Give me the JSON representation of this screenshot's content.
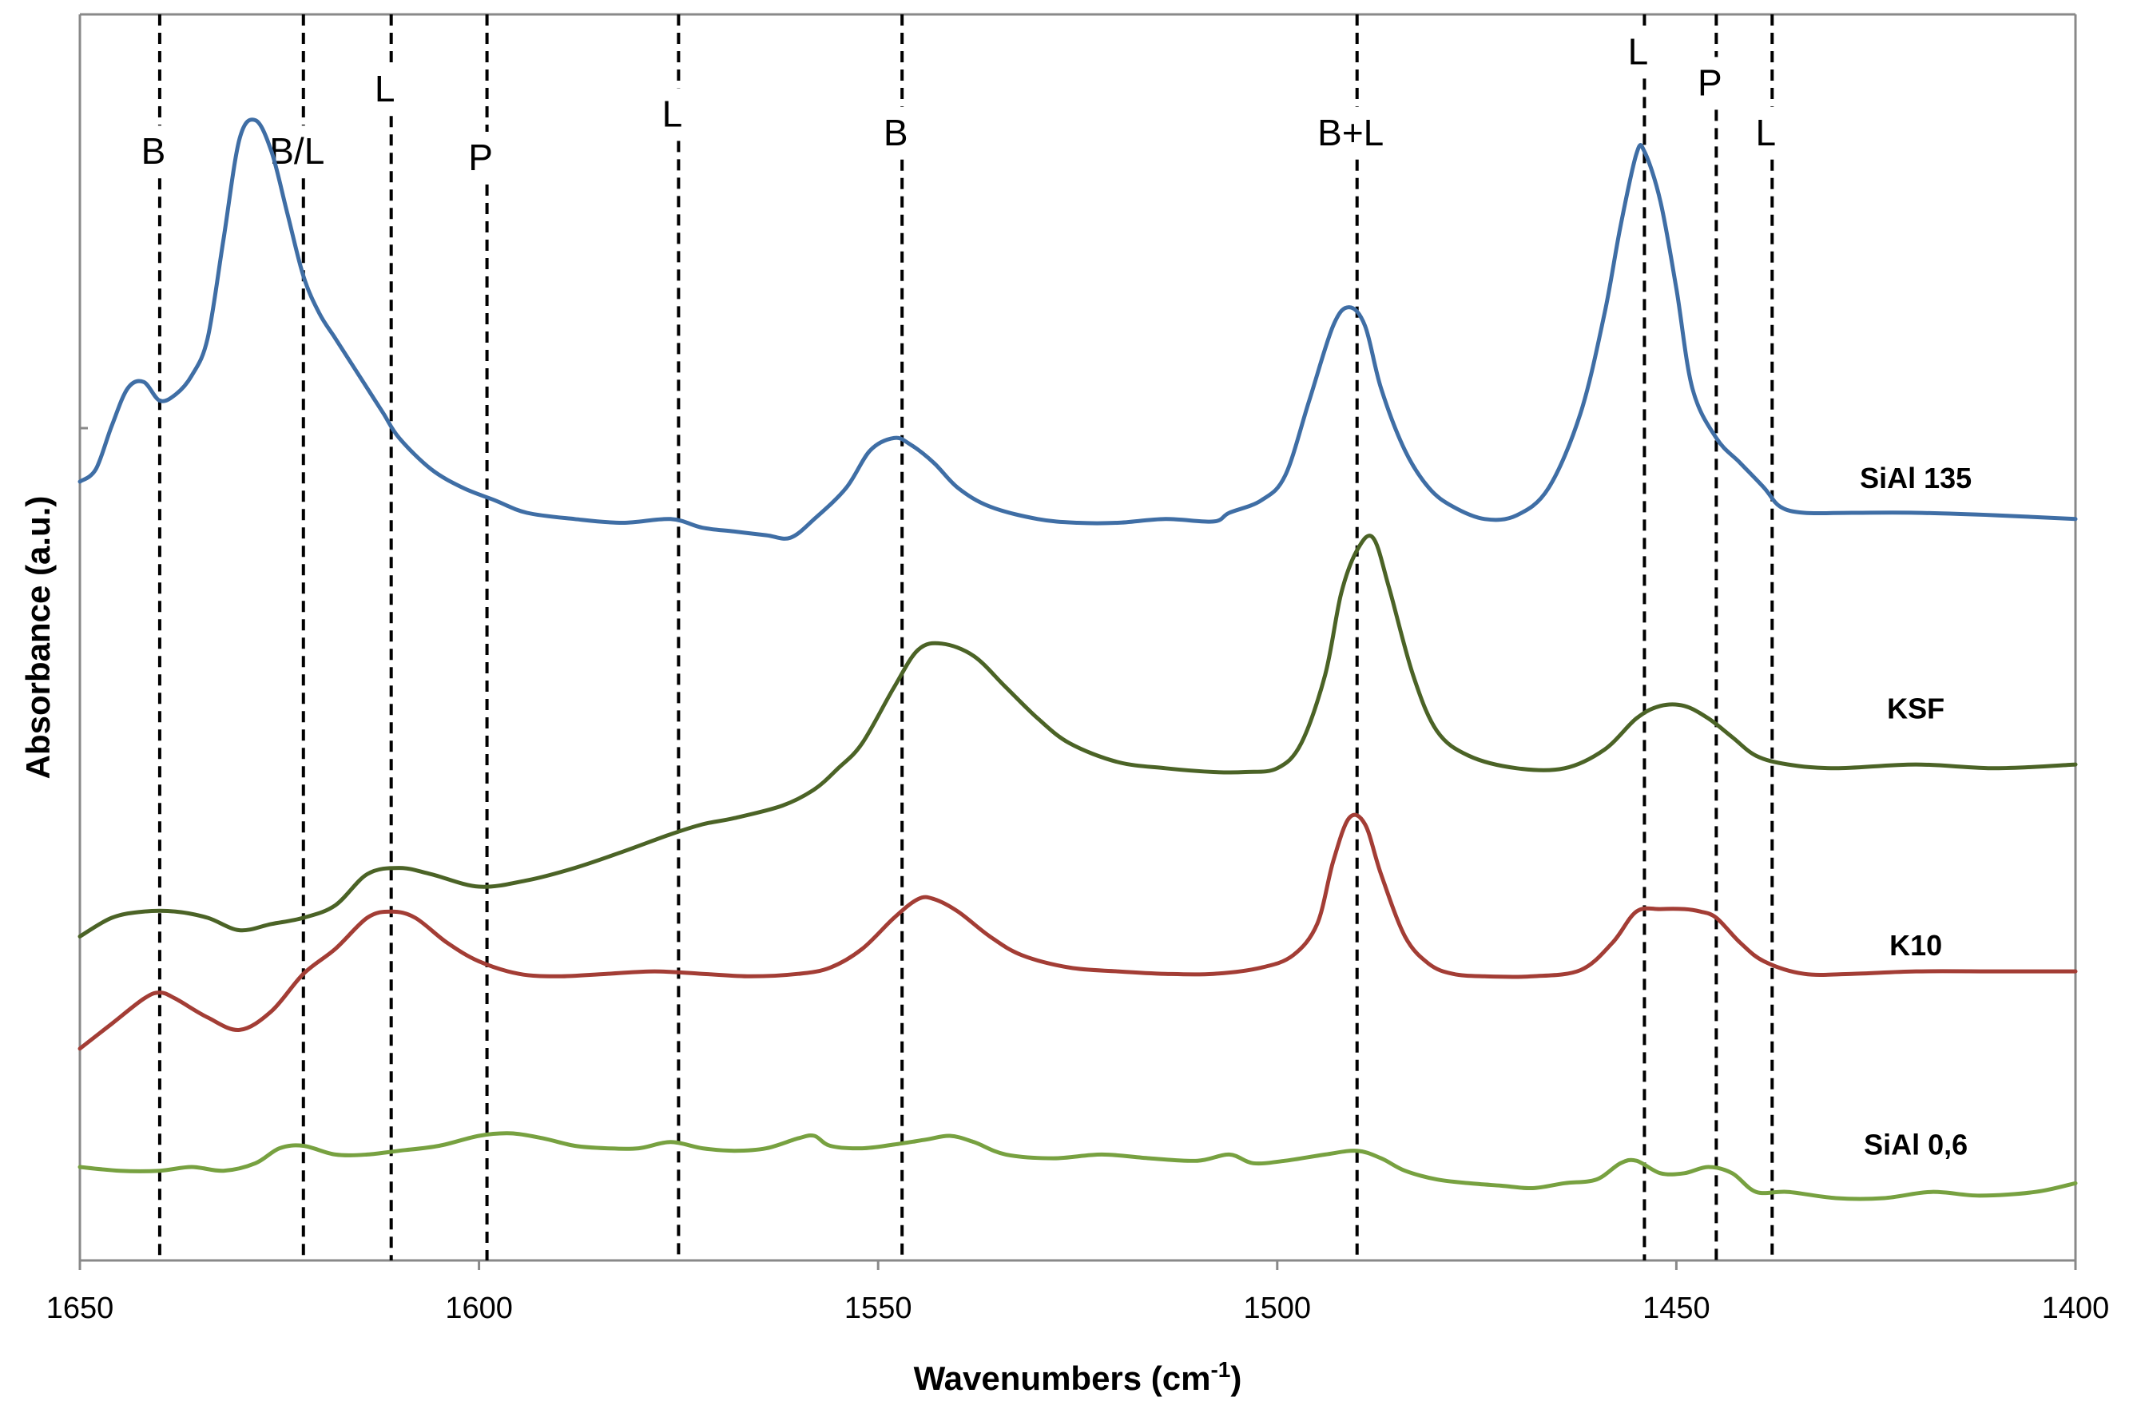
{
  "chart_data": {
    "type": "line",
    "title": "",
    "xlabel": "Wavenumbers (cm",
    "xlabel_sup": "-1",
    "xlabel_suffix": ")",
    "ylabel": "Absorbance (a.u.)",
    "xlim": [
      1650,
      1400
    ],
    "ylim": [
      0,
      10
    ],
    "x_ticks": [
      1650,
      1600,
      1550,
      1500,
      1450,
      1400
    ],
    "grid": false,
    "colors": {
      "axis": "#898989",
      "reference_line": "#000000"
    },
    "reference_lines": [
      {
        "x": 1640,
        "label": "B",
        "label_y": 8.8
      },
      {
        "x": 1622,
        "label": "B/L",
        "label_y": 8.8
      },
      {
        "x": 1611,
        "label": "L",
        "label_y": 9.3
      },
      {
        "x": 1599,
        "label": "P",
        "label_y": 8.75
      },
      {
        "x": 1575,
        "label": "L",
        "label_y": 9.1
      },
      {
        "x": 1547,
        "label": "B",
        "label_y": 8.95
      },
      {
        "x": 1490,
        "label": "B+L",
        "label_y": 8.95
      },
      {
        "x": 1454,
        "label": "L",
        "label_y": 9.6
      },
      {
        "x": 1445,
        "label": "P",
        "label_y": 9.35
      },
      {
        "x": 1438,
        "label": "L",
        "label_y": 8.95
      }
    ],
    "series": [
      {
        "name": "SiAl 135",
        "color": "#3f6ea5",
        "label_x": 1420,
        "label_y": 6.2,
        "x": [
          1650,
          1648,
          1646,
          1644,
          1642,
          1640,
          1638,
          1636,
          1634,
          1632,
          1630,
          1628,
          1626,
          1624,
          1622,
          1620,
          1618,
          1616,
          1614,
          1612,
          1610,
          1606,
          1602,
          1598,
          1594,
          1588,
          1582,
          1576,
          1572,
          1568,
          1564,
          1561,
          1558,
          1554,
          1551,
          1548,
          1546,
          1543,
          1540,
          1536,
          1530,
          1525,
          1520,
          1514,
          1508,
          1506,
          1502,
          1499,
          1496,
          1493,
          1491,
          1489,
          1487,
          1484,
          1481,
          1478,
          1474,
          1470,
          1466,
          1462,
          1459,
          1457,
          1455,
          1454,
          1452,
          1450,
          1448,
          1445,
          1442,
          1439,
          1437,
          1434,
          1428,
          1420,
          1410,
          1400
        ],
        "values": [
          6.25,
          6.35,
          6.7,
          7.0,
          7.05,
          6.9,
          6.95,
          7.1,
          7.4,
          8.2,
          9.0,
          9.15,
          8.9,
          8.4,
          7.9,
          7.6,
          7.4,
          7.2,
          7.0,
          6.8,
          6.6,
          6.35,
          6.2,
          6.1,
          6.0,
          5.95,
          5.92,
          5.95,
          5.88,
          5.85,
          5.82,
          5.8,
          5.95,
          6.2,
          6.5,
          6.6,
          6.55,
          6.4,
          6.2,
          6.05,
          5.95,
          5.92,
          5.92,
          5.95,
          5.93,
          6.0,
          6.1,
          6.3,
          6.9,
          7.5,
          7.65,
          7.5,
          7.0,
          6.5,
          6.2,
          6.05,
          5.95,
          5.98,
          6.2,
          6.8,
          7.6,
          8.3,
          8.88,
          8.9,
          8.5,
          7.8,
          7.0,
          6.6,
          6.4,
          6.2,
          6.05,
          6.0,
          6.0,
          6.0,
          5.98,
          5.95
        ]
      },
      {
        "name": "KSF",
        "color": "#4b6326",
        "label_x": 1420,
        "label_y": 4.35,
        "x": [
          1650,
          1646,
          1642,
          1638,
          1634,
          1630,
          1626,
          1622,
          1618,
          1614,
          1610,
          1606,
          1600,
          1594,
          1588,
          1582,
          1576,
          1572,
          1568,
          1562,
          1558,
          1555,
          1552,
          1548,
          1545,
          1542,
          1538,
          1534,
          1530,
          1526,
          1520,
          1514,
          1508,
          1504,
          1500,
          1497,
          1494,
          1492,
          1490,
          1488,
          1486,
          1483,
          1480,
          1476,
          1470,
          1464,
          1459,
          1455,
          1452,
          1449,
          1446,
          1443,
          1440,
          1436,
          1430,
          1420,
          1410,
          1400
        ],
        "values": [
          2.6,
          2.75,
          2.8,
          2.8,
          2.75,
          2.65,
          2.7,
          2.75,
          2.85,
          3.1,
          3.15,
          3.1,
          3.0,
          3.05,
          3.15,
          3.28,
          3.42,
          3.5,
          3.55,
          3.65,
          3.78,
          3.95,
          4.15,
          4.6,
          4.9,
          4.95,
          4.85,
          4.6,
          4.35,
          4.15,
          4.0,
          3.95,
          3.92,
          3.92,
          3.95,
          4.15,
          4.7,
          5.35,
          5.7,
          5.8,
          5.4,
          4.7,
          4.25,
          4.05,
          3.95,
          3.95,
          4.1,
          4.35,
          4.45,
          4.45,
          4.35,
          4.2,
          4.05,
          3.98,
          3.95,
          3.98,
          3.95,
          3.98
        ]
      },
      {
        "name": "K10",
        "color": "#a33d35",
        "label_x": 1420,
        "label_y": 2.45,
        "x": [
          1650,
          1646,
          1642,
          1640,
          1638,
          1634,
          1630,
          1626,
          1622,
          1618,
          1614,
          1611,
          1608,
          1604,
          1600,
          1595,
          1590,
          1584,
          1578,
          1572,
          1566,
          1560,
          1556,
          1552,
          1548,
          1545,
          1543,
          1540,
          1536,
          1532,
          1526,
          1520,
          1514,
          1508,
          1502,
          1498,
          1495,
          1493,
          1491,
          1489,
          1487,
          1484,
          1481,
          1478,
          1474,
          1468,
          1462,
          1458,
          1455,
          1452,
          1449,
          1447,
          1445,
          1442,
          1439,
          1434,
          1428,
          1420,
          1410,
          1400
        ],
        "values": [
          1.7,
          1.9,
          2.1,
          2.15,
          2.1,
          1.95,
          1.85,
          2.0,
          2.3,
          2.5,
          2.75,
          2.8,
          2.75,
          2.55,
          2.4,
          2.3,
          2.28,
          2.3,
          2.32,
          2.3,
          2.28,
          2.3,
          2.35,
          2.5,
          2.75,
          2.9,
          2.9,
          2.8,
          2.6,
          2.45,
          2.35,
          2.32,
          2.3,
          2.3,
          2.35,
          2.45,
          2.7,
          3.2,
          3.55,
          3.5,
          3.1,
          2.6,
          2.38,
          2.3,
          2.28,
          2.28,
          2.33,
          2.55,
          2.8,
          2.82,
          2.82,
          2.8,
          2.75,
          2.55,
          2.4,
          2.3,
          2.3,
          2.32,
          2.32,
          2.32
        ]
      },
      {
        "name": "SiAl 0,6",
        "color": "#77a140",
        "label_x": 1420,
        "label_y": 0.85,
        "x": [
          1650,
          1645,
          1640,
          1636,
          1632,
          1628,
          1625,
          1622,
          1618,
          1614,
          1610,
          1605,
          1600,
          1596,
          1592,
          1588,
          1584,
          1580,
          1576,
          1572,
          1568,
          1564,
          1560,
          1558,
          1556,
          1552,
          1548,
          1544,
          1541,
          1538,
          1534,
          1528,
          1522,
          1516,
          1510,
          1506,
          1503,
          1499,
          1494,
          1490,
          1487,
          1484,
          1480,
          1476,
          1472,
          1468,
          1464,
          1460,
          1457,
          1455,
          1452,
          1449,
          1446,
          1443,
          1440,
          1436,
          1430,
          1424,
          1418,
          1412,
          1405,
          1400
        ],
        "values": [
          0.75,
          0.72,
          0.72,
          0.75,
          0.72,
          0.78,
          0.9,
          0.92,
          0.85,
          0.85,
          0.88,
          0.92,
          1.0,
          1.02,
          0.98,
          0.92,
          0.9,
          0.9,
          0.95,
          0.9,
          0.88,
          0.9,
          0.98,
          1.0,
          0.92,
          0.9,
          0.93,
          0.97,
          1.0,
          0.95,
          0.85,
          0.82,
          0.85,
          0.82,
          0.8,
          0.85,
          0.78,
          0.8,
          0.85,
          0.88,
          0.82,
          0.72,
          0.65,
          0.62,
          0.6,
          0.58,
          0.62,
          0.65,
          0.78,
          0.8,
          0.7,
          0.7,
          0.75,
          0.7,
          0.55,
          0.55,
          0.5,
          0.5,
          0.55,
          0.52,
          0.55,
          0.62
        ]
      }
    ]
  }
}
